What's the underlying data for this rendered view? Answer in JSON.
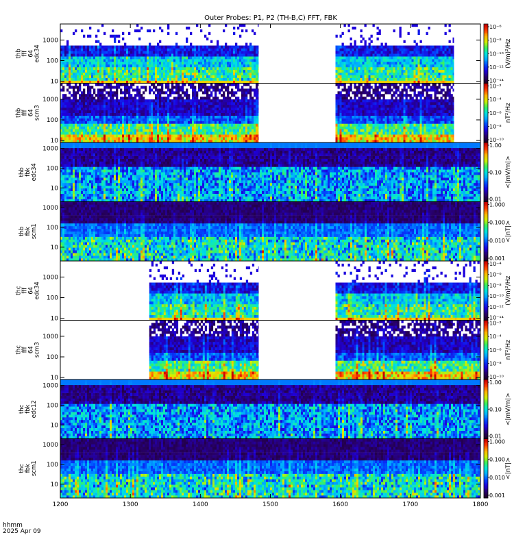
{
  "chart_data": {
    "type": "heatmap",
    "title": "Outer Probes: P1, P2 (TH-B,C) FFT, FBK",
    "x_ticks": [
      "1200",
      "1300",
      "1400",
      "1500",
      "1600",
      "1700",
      "1800"
    ],
    "xlim": [
      1200,
      1800
    ],
    "footer": {
      "time_label": "hhmm",
      "date": "2025 Apr 09"
    },
    "panels": [
      {
        "ylabel": [
          "thb",
          "fff",
          "64",
          "edc34"
        ],
        "yticks": [
          "10",
          "100",
          "1000"
        ],
        "yscale": "log",
        "ylim": [
          8,
          6000
        ],
        "kind": "fff_e",
        "coverage": [
          [
            1200,
            1483
          ],
          [
            1593,
            1762
          ]
        ],
        "colorbar": {
          "label": "(V/m)²/Hz",
          "ticks": [
            "10⁻⁶",
            "10⁻⁸",
            "10⁻¹⁰",
            "10⁻¹²",
            "10⁻¹⁴"
          ]
        }
      },
      {
        "ylabel": [
          "thb",
          "fff",
          "64",
          "scm3"
        ],
        "yticks": [
          "10",
          "100",
          "1000"
        ],
        "yscale": "log",
        "ylim": [
          8,
          6000
        ],
        "kind": "fff_b",
        "coverage": [
          [
            1200,
            1483
          ],
          [
            1593,
            1762
          ]
        ],
        "colorbar": {
          "label": "nT²/Hz",
          "ticks": [
            "10⁻²",
            "10⁻⁴",
            "10⁻⁶",
            "10⁻⁸",
            "10⁻¹⁰"
          ]
        }
      },
      {
        "ylabel": [
          "thb",
          "fbk",
          "edc34"
        ],
        "yticks": [
          "10",
          "100",
          "1000"
        ],
        "yscale": "log",
        "ylim": [
          2,
          2000
        ],
        "kind": "fbk_e",
        "coverage": [
          [
            1200,
            1800
          ]
        ],
        "colorbar": {
          "label": "<|mV/m|>",
          "ticks": [
            "1.00",
            "0.10",
            "0.01"
          ]
        }
      },
      {
        "ylabel": [
          "thb",
          "fbk",
          "scm1"
        ],
        "yticks": [
          "10",
          "100",
          "1000"
        ],
        "yscale": "log",
        "ylim": [
          2,
          2000
        ],
        "kind": "fbk_b",
        "coverage": [
          [
            1200,
            1800
          ]
        ],
        "colorbar": {
          "label": "<|nT|>",
          "ticks": [
            "1.000",
            "0.100",
            "0.010",
            "0.001"
          ]
        }
      },
      {
        "ylabel": [
          "thc",
          "fff",
          "64",
          "edc34"
        ],
        "yticks": [
          "10",
          "100",
          "1000"
        ],
        "yscale": "log",
        "ylim": [
          8,
          6000
        ],
        "kind": "fff_e",
        "coverage": [
          [
            1327,
            1483
          ],
          [
            1593,
            1800
          ]
        ],
        "colorbar": {
          "label": "(V/m)²/Hz",
          "ticks": [
            "10⁻⁴",
            "10⁻⁶",
            "10⁻⁸",
            "10⁻¹⁰",
            "10⁻¹²",
            "10⁻¹⁴"
          ]
        }
      },
      {
        "ylabel": [
          "thc",
          "fff",
          "64",
          "scm3"
        ],
        "yticks": [
          "10",
          "100",
          "1000"
        ],
        "yscale": "log",
        "ylim": [
          8,
          6000
        ],
        "kind": "fff_b",
        "coverage": [
          [
            1327,
            1483
          ],
          [
            1593,
            1800
          ]
        ],
        "colorbar": {
          "label": "nT²/Hz",
          "ticks": [
            "10⁻²",
            "10⁻⁴",
            "10⁻⁶",
            "10⁻⁸",
            "10⁻¹⁰"
          ]
        }
      },
      {
        "ylabel": [
          "thc",
          "fbk",
          "edc12"
        ],
        "yticks": [
          "10",
          "100",
          "1000"
        ],
        "yscale": "log",
        "ylim": [
          2,
          2000
        ],
        "kind": "fbk_e",
        "coverage": [
          [
            1200,
            1800
          ]
        ],
        "colorbar": {
          "label": "<|mV/m|>",
          "ticks": [
            "1.00",
            "0.10",
            "0.01"
          ]
        }
      },
      {
        "ylabel": [
          "thc",
          "fbk",
          "scm1"
        ],
        "yticks": [
          "10",
          "100",
          "1000"
        ],
        "yscale": "log",
        "ylim": [
          2,
          2000
        ],
        "kind": "fbk_b",
        "coverage": [
          [
            1200,
            1800
          ]
        ],
        "colorbar": {
          "label": "<|nT|>",
          "ticks": [
            "1.000",
            "0.100",
            "0.010",
            "0.001"
          ]
        }
      }
    ]
  }
}
